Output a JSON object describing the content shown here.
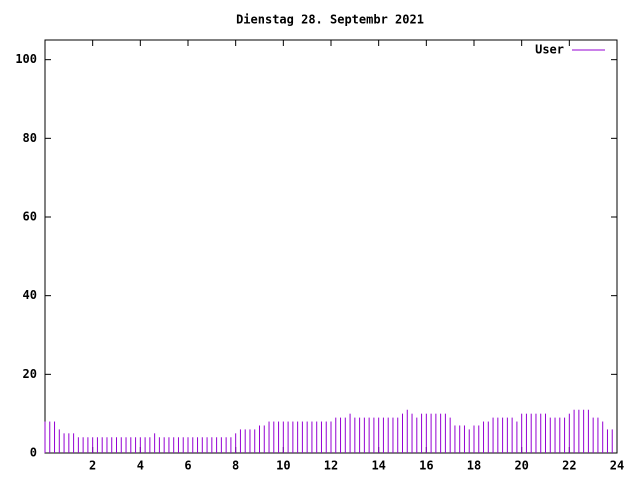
{
  "chart_data": {
    "type": "impulse",
    "title": "Dienstag 28. Septembr 2021",
    "series": [
      {
        "name": "User",
        "color": "#9400d3",
        "x": [
          0,
          0.2,
          0.4,
          0.6,
          0.8,
          1,
          1.2,
          1.4,
          1.6,
          1.8,
          2,
          2.2,
          2.4,
          2.6,
          2.8,
          3,
          3.2,
          3.4,
          3.6,
          3.8,
          4,
          4.2,
          4.4,
          4.6,
          4.8,
          5,
          5.2,
          5.4,
          5.6,
          5.8,
          6,
          6.2,
          6.4,
          6.6,
          6.8,
          7,
          7.2,
          7.4,
          7.6,
          7.8,
          8,
          8.2,
          8.4,
          8.6,
          8.8,
          9,
          9.2,
          9.4,
          9.6,
          9.8,
          10,
          10.2,
          10.4,
          10.6,
          10.8,
          11,
          11.2,
          11.4,
          11.6,
          11.8,
          12,
          12.2,
          12.4,
          12.6,
          12.8,
          13,
          13.2,
          13.4,
          13.6,
          13.8,
          14,
          14.2,
          14.4,
          14.6,
          14.8,
          15,
          15.2,
          15.4,
          15.6,
          15.8,
          16,
          16.2,
          16.4,
          16.6,
          16.8,
          17,
          17.2,
          17.4,
          17.6,
          17.8,
          18,
          18.2,
          18.4,
          18.6,
          18.8,
          19,
          19.2,
          19.4,
          19.6,
          19.8,
          20,
          20.2,
          20.4,
          20.6,
          20.8,
          21,
          21.2,
          21.4,
          21.6,
          21.8,
          22,
          22.2,
          22.4,
          22.6,
          22.8,
          23,
          23.2,
          23.4,
          23.6,
          23.8
        ],
        "values": [
          8,
          8,
          8,
          6,
          5,
          5,
          5,
          4,
          4,
          4,
          4,
          4,
          4,
          4,
          4,
          4,
          4,
          4,
          4,
          4,
          4,
          4,
          4,
          5,
          4,
          4,
          4,
          4,
          4,
          4,
          4,
          4,
          4,
          4,
          4,
          4,
          4,
          4,
          4,
          4,
          5,
          6,
          6,
          6,
          6,
          7,
          7,
          8,
          8,
          8,
          8,
          8,
          8,
          8,
          8,
          8,
          8,
          8,
          8,
          8,
          8,
          9,
          9,
          9,
          10,
          9,
          9,
          9,
          9,
          9,
          9,
          9,
          9,
          9,
          9,
          10,
          11,
          10,
          9,
          10,
          10,
          10,
          10,
          10,
          10,
          9,
          7,
          7,
          7,
          6,
          7,
          7,
          8,
          8,
          9,
          9,
          9,
          9,
          9,
          8,
          10,
          10,
          10,
          10,
          10,
          10,
          9,
          9,
          9,
          9,
          10,
          11,
          11,
          11,
          11,
          9,
          9,
          8,
          6,
          6
        ]
      }
    ],
    "xlim": [
      0,
      24
    ],
    "xticks": [
      2,
      4,
      6,
      8,
      10,
      12,
      14,
      16,
      18,
      20,
      22,
      24
    ],
    "ylim": [
      0,
      105
    ],
    "yticks": [
      0,
      20,
      40,
      60,
      80,
      100
    ],
    "legend": "top-right"
  }
}
